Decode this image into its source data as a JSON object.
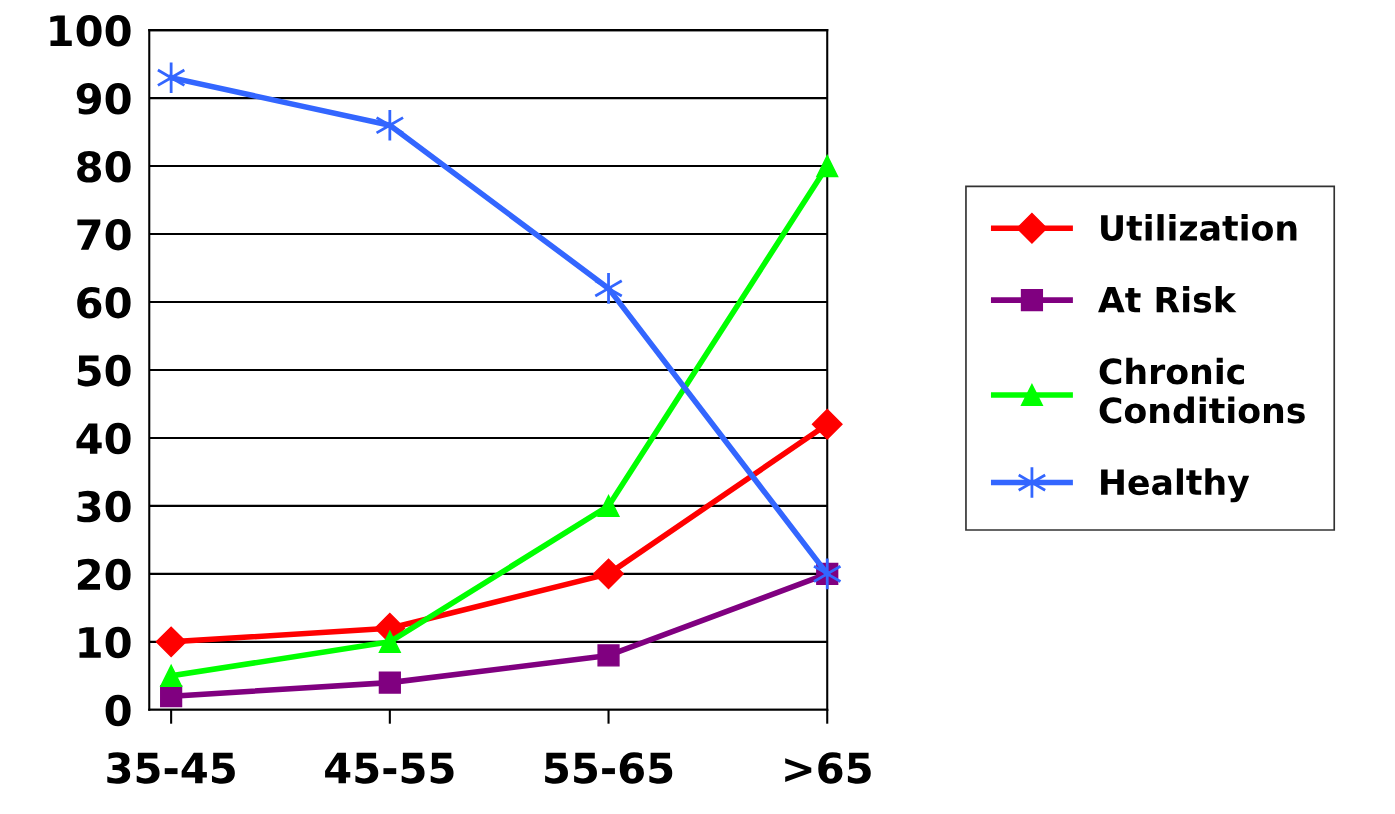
{
  "chart_data": {
    "type": "line",
    "categories": [
      "35-45",
      "45-55",
      "55-65",
      ">65"
    ],
    "series": [
      {
        "name": "Utilization",
        "color": "#ff0000",
        "marker": "diamond",
        "values": [
          10,
          12,
          20,
          42
        ]
      },
      {
        "name": "At Risk",
        "color": "#800080",
        "marker": "square",
        "values": [
          2,
          4,
          8,
          20
        ]
      },
      {
        "name": "Chronic\nConditions",
        "color": "#00ff00",
        "marker": "triangle",
        "values": [
          5,
          10,
          30,
          80
        ]
      },
      {
        "name": "Healthy",
        "color": "#3366ff",
        "marker": "cross",
        "values": [
          93,
          86,
          62,
          20
        ]
      }
    ],
    "ylim": [
      0,
      100
    ],
    "yticks": [
      0,
      10,
      20,
      30,
      40,
      50,
      60,
      70,
      80,
      90,
      100
    ],
    "grid": "y",
    "legend": "right"
  }
}
